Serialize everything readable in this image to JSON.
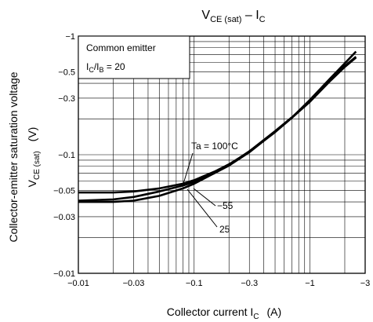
{
  "chart_data": {
    "type": "line",
    "title": {
      "main": "V",
      "sub": "CE (sat)",
      "rest": " – I",
      "sub2": "C"
    },
    "xlabel": {
      "main": "Collector current  I",
      "sub": "C",
      "unit": "(A)"
    },
    "ylabel": {
      "main": "Collector-emitter saturation voltage",
      "sym": "V",
      "sub": "CE (sat)",
      "unit": "(V)"
    },
    "x_scale": "log",
    "y_scale": "log",
    "xlim": [
      -0.01,
      -3
    ],
    "ylim": [
      -0.01,
      -1
    ],
    "x_ticks": [
      {
        "v": -0.01,
        "label": "−0.01"
      },
      {
        "v": -0.03,
        "label": "−0.03"
      },
      {
        "v": -0.1,
        "label": "−0.1"
      },
      {
        "v": -0.3,
        "label": "−0.3"
      },
      {
        "v": -1,
        "label": "−1"
      },
      {
        "v": -3,
        "label": "−3"
      }
    ],
    "y_ticks": [
      {
        "v": -1,
        "label": "−1"
      },
      {
        "v": -0.5,
        "label": "−0.5"
      },
      {
        "v": -0.3,
        "label": "−0.3"
      },
      {
        "v": -0.1,
        "label": "−0.1"
      },
      {
        "v": -0.05,
        "label": "−0.05"
      },
      {
        "v": -0.03,
        "label": "−0.03"
      },
      {
        "v": -0.01,
        "label": "−0.01"
      }
    ],
    "grid": true,
    "legend": {
      "line1": "Common emitter",
      "line2_main": "I",
      "line2_sub1": "C",
      "line2_mid": "/I",
      "line2_sub2": "B",
      "line2_rest": " = 20"
    },
    "series": [
      {
        "name": "Ta = 100°C",
        "x": [
          -0.01,
          -0.02,
          -0.03,
          -0.05,
          -0.08,
          -0.1,
          -0.15,
          -0.2,
          -0.3,
          -0.5,
          -0.7,
          -1,
          -1.5,
          -2,
          -2.5
        ],
        "y": [
          -0.048,
          -0.048,
          -0.049,
          -0.052,
          -0.057,
          -0.061,
          -0.072,
          -0.083,
          -0.106,
          -0.155,
          -0.205,
          -0.28,
          -0.43,
          -0.56,
          -0.67
        ]
      },
      {
        "name": "−55",
        "x": [
          -0.01,
          -0.02,
          -0.03,
          -0.05,
          -0.08,
          -0.1,
          -0.15,
          -0.2,
          -0.3,
          -0.5,
          -0.7,
          -1,
          -1.5,
          -2,
          -2.5
        ],
        "y": [
          -0.041,
          -0.042,
          -0.044,
          -0.049,
          -0.055,
          -0.059,
          -0.07,
          -0.081,
          -0.105,
          -0.156,
          -0.206,
          -0.29,
          -0.44,
          -0.59,
          -0.74
        ]
      },
      {
        "name": "25",
        "x": [
          -0.01,
          -0.02,
          -0.03,
          -0.05,
          -0.08,
          -0.1,
          -0.15,
          -0.2,
          -0.3,
          -0.5,
          -0.7,
          -1,
          -1.5,
          -2,
          -2.5
        ],
        "y": [
          -0.04,
          -0.04,
          -0.041,
          -0.045,
          -0.052,
          -0.057,
          -0.07,
          -0.082,
          -0.107,
          -0.158,
          -0.207,
          -0.28,
          -0.42,
          -0.55,
          -0.66
        ]
      }
    ],
    "annotations": [
      "Ta = 100°C",
      "−55",
      "25"
    ]
  }
}
